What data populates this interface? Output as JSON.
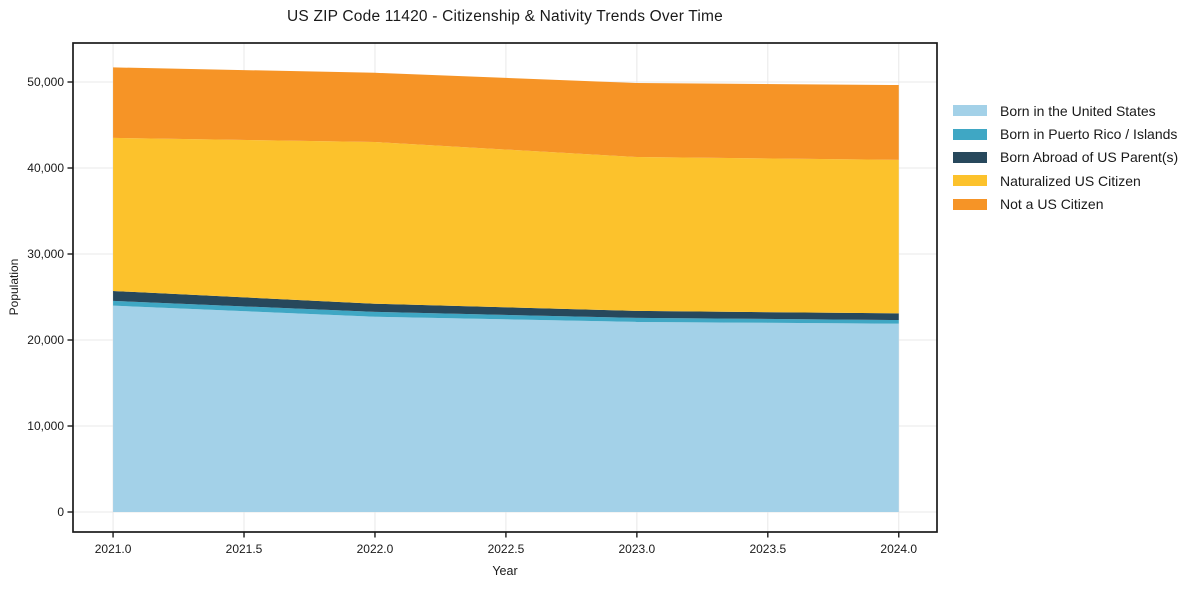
{
  "chart_data": {
    "type": "area",
    "stacked": true,
    "title": "US ZIP Code 11420 - Citizenship & Nativity Trends Over Time",
    "xlabel": "Year",
    "ylabel": "Population",
    "x": [
      2021,
      2022,
      2023,
      2024
    ],
    "series": [
      {
        "name": "Born in the United States",
        "color": "#a3d1e8",
        "values": [
          24000,
          22700,
          22100,
          21900
        ]
      },
      {
        "name": "Born in Puerto Rico / Islands",
        "color": "#3fa7c4",
        "values": [
          550,
          570,
          470,
          420
        ]
      },
      {
        "name": "Born Abroad of US Parent(s)",
        "color": "#27485c",
        "values": [
          1150,
          950,
          810,
          780
        ]
      },
      {
        "name": "Naturalized US Citizen",
        "color": "#fcc22c",
        "values": [
          17800,
          18800,
          17900,
          17850
        ]
      },
      {
        "name": "Not a US Citizen",
        "color": "#f69426",
        "values": [
          8200,
          8050,
          8600,
          8700
        ]
      }
    ],
    "totals": [
      51700,
      51070,
      49880,
      49650
    ],
    "xlim": [
      2020.847,
      2024.146
    ],
    "ylim": [
      -2325,
      54535
    ],
    "x_ticks": [
      {
        "value": 2021.0,
        "label": "2021.0"
      },
      {
        "value": 2021.5,
        "label": "2021.5"
      },
      {
        "value": 2022.0,
        "label": "2022.0"
      },
      {
        "value": 2022.5,
        "label": "2022.5"
      },
      {
        "value": 2023.0,
        "label": "2023.0"
      },
      {
        "value": 2023.5,
        "label": "2023.5"
      },
      {
        "value": 2024.0,
        "label": "2024.0"
      }
    ],
    "y_ticks": [
      {
        "value": 0,
        "label": "0"
      },
      {
        "value": 10000,
        "label": "10,000"
      },
      {
        "value": 20000,
        "label": "20,000"
      },
      {
        "value": 30000,
        "label": "30,000"
      },
      {
        "value": 40000,
        "label": "40,000"
      },
      {
        "value": 50000,
        "label": "50,000"
      }
    ],
    "grid": true,
    "grid_color": "#e8e8e8",
    "frame_color": "#1a1a1a",
    "tick_color": "#1a1a1a",
    "legend_position": "right"
  }
}
